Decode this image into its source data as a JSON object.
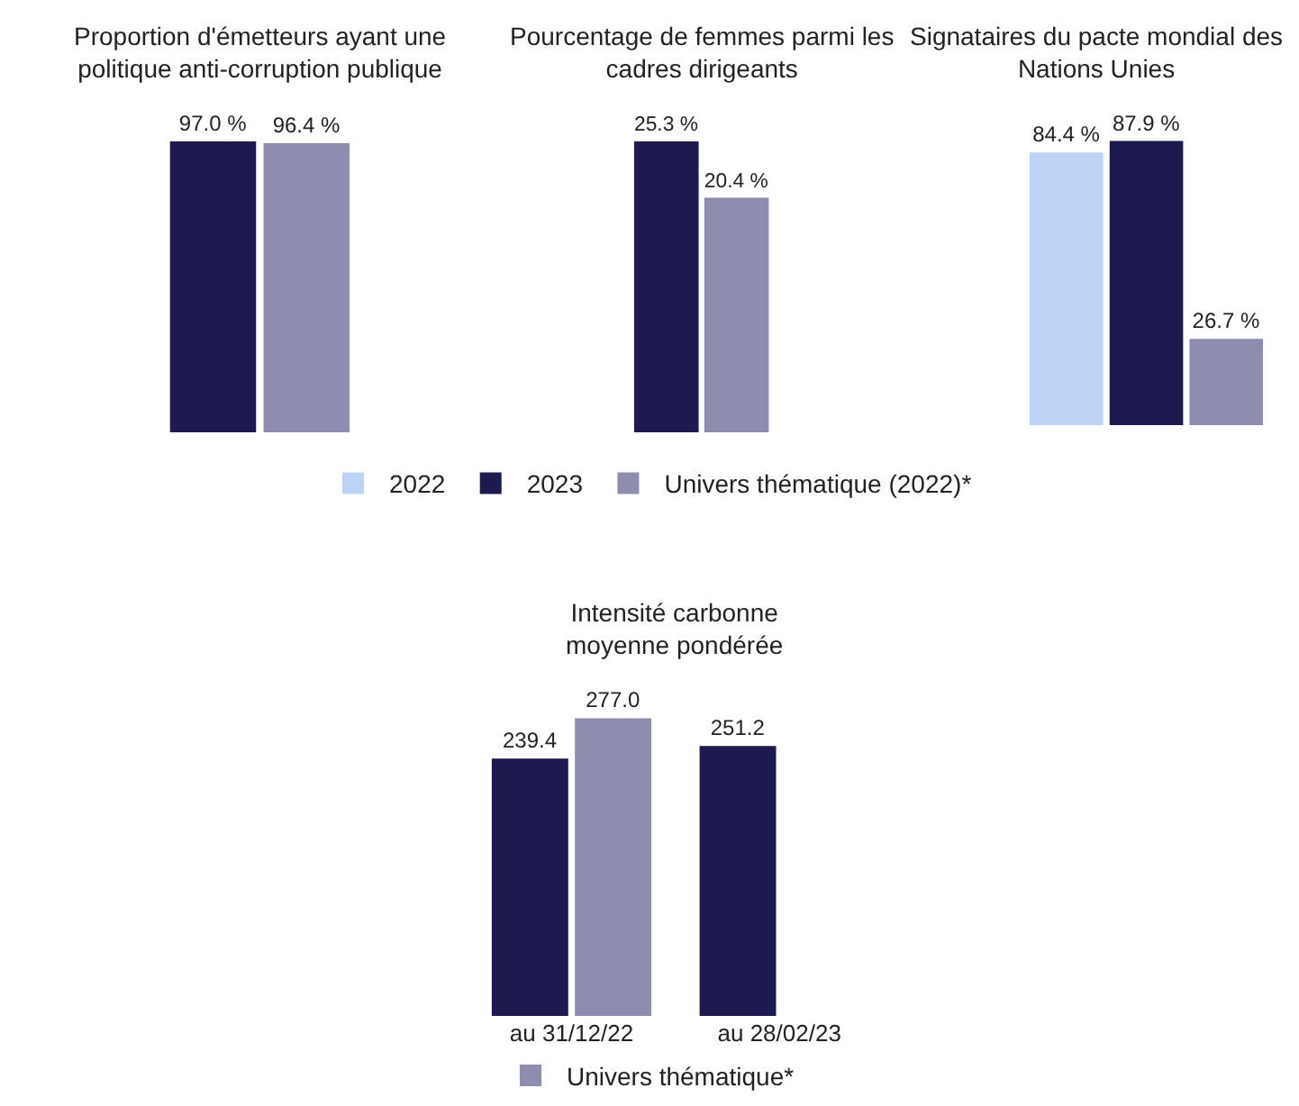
{
  "chart_data": [
    {
      "type": "bar",
      "title": "Proportion d'émetteurs ayant une politique anti-corruption publique",
      "categories": [
        null
      ],
      "series": [
        {
          "color": "#1c1a4e",
          "values": [
            97.0
          ],
          "value_labels": [
            "97.0 %"
          ]
        },
        {
          "color": "#8e8db0",
          "values": [
            96.4
          ],
          "value_labels": [
            "96.4 %"
          ]
        }
      ]
    },
    {
      "type": "bar",
      "title": "Pourcentage de femmes parmi les cadres dirigeants",
      "categories": [
        null
      ],
      "series": [
        {
          "color": "#1c1a4e",
          "values": [
            25.3
          ],
          "value_labels": [
            "25.3 %"
          ]
        },
        {
          "color": "#8e8db0",
          "values": [
            20.4
          ],
          "value_labels": [
            "20.4 %"
          ]
        }
      ]
    },
    {
      "type": "bar",
      "title": "Signataires du pacte mondial des Nations Unies",
      "categories": [
        null
      ],
      "legend": "bottom",
      "series": [
        {
          "name": "2022",
          "color": "#bdd3f5",
          "values": [
            84.4
          ],
          "value_labels": [
            "84.4 %"
          ]
        },
        {
          "name": "2023",
          "color": "#1c1a4e",
          "values": [
            87.9
          ],
          "value_labels": [
            "87.9 %"
          ]
        },
        {
          "name": "Univers thématique (2022)*",
          "color": "#8e8db0",
          "values": [
            26.7
          ],
          "value_labels": [
            "26.7 %"
          ]
        }
      ]
    },
    {
      "type": "bar",
      "title": "Intensité carbonne moyenne pondérée",
      "categories": [
        "au 31/12/22",
        "au 28/02/23"
      ],
      "legend": "bottom",
      "series": [
        {
          "color": "#1c1a4e",
          "values": [
            239.4,
            251.2
          ],
          "value_labels": [
            "239.4",
            "251.2"
          ]
        },
        {
          "name": "Univers thématique*",
          "color": "#8e8db0",
          "values": [
            277.0,
            null
          ],
          "value_labels": [
            "277.0",
            null
          ]
        }
      ]
    }
  ]
}
